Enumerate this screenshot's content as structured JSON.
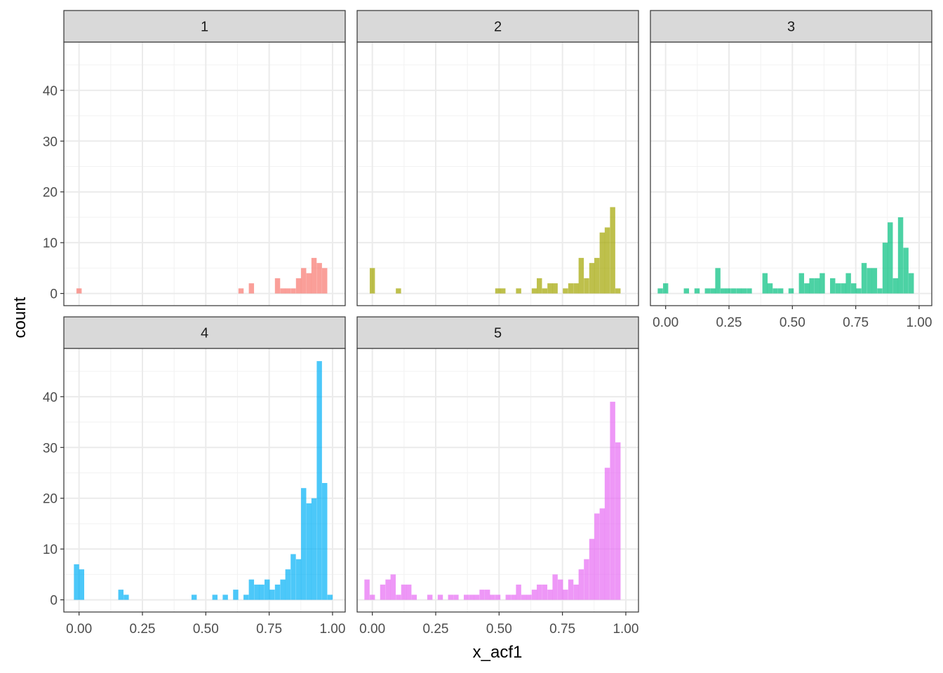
{
  "chart_data": {
    "type": "bar",
    "subtype": "faceted-histogram",
    "xlabel": "x_acf1",
    "ylabel": "count",
    "xlim": [
      -0.06,
      1.05
    ],
    "ylim": [
      -2.4,
      49.5
    ],
    "x_ticks": [
      "0.00",
      "0.25",
      "0.50",
      "0.75",
      "1.00"
    ],
    "x_tick_values": [
      0,
      0.25,
      0.5,
      0.75,
      1.0
    ],
    "y_ticks": [
      "0",
      "10",
      "20",
      "30",
      "40"
    ],
    "y_tick_values": [
      0,
      10,
      20,
      30,
      40
    ],
    "bin_width": 0.0206,
    "grid": true,
    "theme": "bw",
    "facets": [
      {
        "label": "1",
        "color": "#F8766D",
        "bins": [
          [
            0.0,
            1
          ],
          [
            0.639,
            1
          ],
          [
            0.68,
            2
          ],
          [
            0.783,
            3
          ],
          [
            0.804,
            1
          ],
          [
            0.824,
            1
          ],
          [
            0.845,
            1
          ],
          [
            0.866,
            3
          ],
          [
            0.886,
            5
          ],
          [
            0.907,
            4
          ],
          [
            0.927,
            7
          ],
          [
            0.948,
            6
          ],
          [
            0.969,
            5
          ]
        ]
      },
      {
        "label": "2",
        "color": "#A3A500",
        "bins": [
          [
            0.0,
            5
          ],
          [
            0.103,
            1
          ],
          [
            0.495,
            1
          ],
          [
            0.515,
            1
          ],
          [
            0.577,
            1
          ],
          [
            0.639,
            1
          ],
          [
            0.659,
            3
          ],
          [
            0.68,
            1
          ],
          [
            0.701,
            2
          ],
          [
            0.721,
            2
          ],
          [
            0.762,
            1
          ],
          [
            0.783,
            2
          ],
          [
            0.804,
            2
          ],
          [
            0.824,
            7
          ],
          [
            0.845,
            3
          ],
          [
            0.866,
            6
          ],
          [
            0.886,
            7
          ],
          [
            0.907,
            12
          ],
          [
            0.927,
            13
          ],
          [
            0.948,
            17
          ],
          [
            0.969,
            1
          ]
        ]
      },
      {
        "label": "3",
        "color": "#00BF7D",
        "bins": [
          [
            -0.021,
            1
          ],
          [
            0.0,
            2
          ],
          [
            0.082,
            1
          ],
          [
            0.124,
            1
          ],
          [
            0.165,
            1
          ],
          [
            0.186,
            1
          ],
          [
            0.206,
            5
          ],
          [
            0.227,
            1
          ],
          [
            0.247,
            1
          ],
          [
            0.268,
            1
          ],
          [
            0.289,
            1
          ],
          [
            0.309,
            1
          ],
          [
            0.33,
            1
          ],
          [
            0.392,
            4
          ],
          [
            0.412,
            2
          ],
          [
            0.433,
            1
          ],
          [
            0.454,
            1
          ],
          [
            0.495,
            1
          ],
          [
            0.536,
            4
          ],
          [
            0.557,
            2
          ],
          [
            0.577,
            3
          ],
          [
            0.598,
            3
          ],
          [
            0.618,
            4
          ],
          [
            0.659,
            3
          ],
          [
            0.68,
            2
          ],
          [
            0.701,
            2
          ],
          [
            0.721,
            4
          ],
          [
            0.742,
            2
          ],
          [
            0.762,
            1
          ],
          [
            0.783,
            6
          ],
          [
            0.804,
            5
          ],
          [
            0.824,
            5
          ],
          [
            0.845,
            1
          ],
          [
            0.866,
            10
          ],
          [
            0.886,
            14
          ],
          [
            0.907,
            3
          ],
          [
            0.927,
            15
          ],
          [
            0.948,
            9
          ],
          [
            0.969,
            4
          ]
        ]
      },
      {
        "label": "4",
        "color": "#00B0F6",
        "bins": [
          [
            -0.01,
            7
          ],
          [
            0.01,
            6
          ],
          [
            0.165,
            2
          ],
          [
            0.186,
            1
          ],
          [
            0.454,
            1
          ],
          [
            0.536,
            1
          ],
          [
            0.577,
            1
          ],
          [
            0.618,
            2
          ],
          [
            0.659,
            1
          ],
          [
            0.68,
            4
          ],
          [
            0.701,
            3
          ],
          [
            0.721,
            3
          ],
          [
            0.742,
            4
          ],
          [
            0.762,
            2
          ],
          [
            0.783,
            3
          ],
          [
            0.804,
            4
          ],
          [
            0.824,
            6
          ],
          [
            0.845,
            9
          ],
          [
            0.866,
            8
          ],
          [
            0.886,
            22
          ],
          [
            0.907,
            19
          ],
          [
            0.927,
            20
          ],
          [
            0.948,
            47
          ],
          [
            0.969,
            23
          ],
          [
            0.99,
            1
          ]
        ]
      },
      {
        "label": "5",
        "color": "#E76BF3",
        "bins": [
          [
            -0.021,
            4
          ],
          [
            0.0,
            1
          ],
          [
            0.041,
            3
          ],
          [
            0.062,
            4
          ],
          [
            0.082,
            5
          ],
          [
            0.103,
            1
          ],
          [
            0.124,
            3
          ],
          [
            0.144,
            3
          ],
          [
            0.165,
            1
          ],
          [
            0.227,
            1
          ],
          [
            0.268,
            1
          ],
          [
            0.309,
            1
          ],
          [
            0.33,
            1
          ],
          [
            0.371,
            1
          ],
          [
            0.392,
            1
          ],
          [
            0.412,
            1
          ],
          [
            0.433,
            2
          ],
          [
            0.454,
            2
          ],
          [
            0.474,
            1
          ],
          [
            0.495,
            1
          ],
          [
            0.536,
            1
          ],
          [
            0.557,
            1
          ],
          [
            0.577,
            3
          ],
          [
            0.598,
            1
          ],
          [
            0.618,
            1
          ],
          [
            0.639,
            2
          ],
          [
            0.659,
            3
          ],
          [
            0.68,
            3
          ],
          [
            0.701,
            2
          ],
          [
            0.721,
            5
          ],
          [
            0.742,
            4
          ],
          [
            0.762,
            2
          ],
          [
            0.783,
            4
          ],
          [
            0.804,
            3
          ],
          [
            0.824,
            6
          ],
          [
            0.845,
            8
          ],
          [
            0.866,
            12
          ],
          [
            0.886,
            17
          ],
          [
            0.907,
            18
          ],
          [
            0.927,
            26
          ],
          [
            0.948,
            39
          ],
          [
            0.969,
            31
          ]
        ]
      }
    ]
  }
}
